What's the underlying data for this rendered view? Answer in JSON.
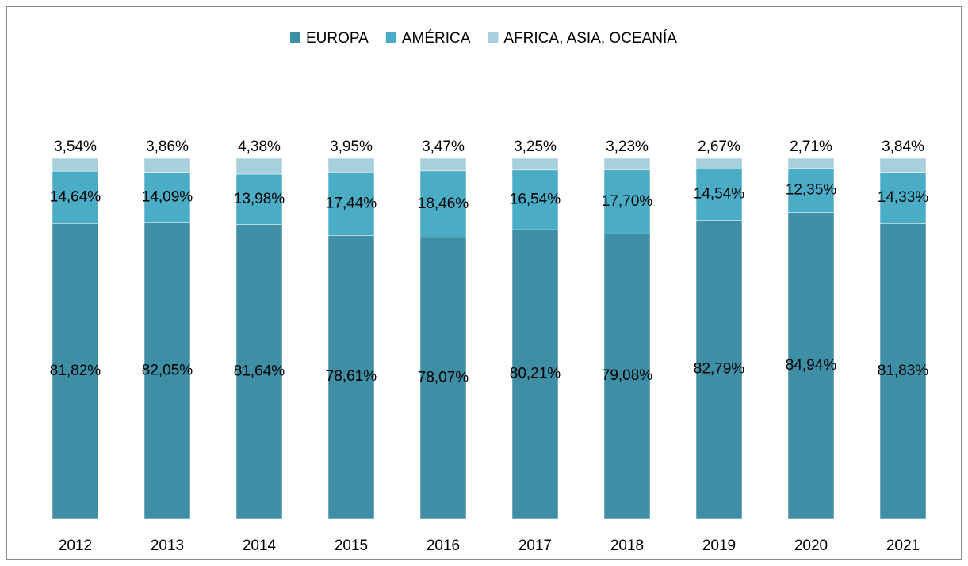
{
  "chart_data": {
    "type": "stacked-bar",
    "categories": [
      "2012",
      "2013",
      "2014",
      "2015",
      "2016",
      "2017",
      "2018",
      "2019",
      "2020",
      "2021"
    ],
    "series": [
      {
        "name": "EUROPA",
        "color": "#3e8ea6",
        "values": [
          81.82,
          82.05,
          81.64,
          78.61,
          78.07,
          80.21,
          79.08,
          82.79,
          84.94,
          81.83
        ],
        "value_labels": [
          "81,82%",
          "82,05%",
          "81,64%",
          "78,61%",
          "78,07%",
          "80,21%",
          "79,08%",
          "82,79%",
          "84,94%",
          "81,83%"
        ]
      },
      {
        "name": "AMÉRICA",
        "color": "#4bacc6",
        "values": [
          14.64,
          14.09,
          13.98,
          17.44,
          18.46,
          16.54,
          17.7,
          14.54,
          12.35,
          14.33
        ],
        "value_labels": [
          "14,64%",
          "14,09%",
          "13,98%",
          "17,44%",
          "18,46%",
          "16,54%",
          "17,70%",
          "14,54%",
          "12,35%",
          "14,33%"
        ]
      },
      {
        "name": "AFRICA, ASIA, OCEANÍA",
        "color": "#a8cfdc",
        "values": [
          3.54,
          3.86,
          4.38,
          3.95,
          3.47,
          3.25,
          3.23,
          2.67,
          2.71,
          3.84
        ],
        "value_labels": [
          "3,54%",
          "3,86%",
          "4,38%",
          "3,95%",
          "3,47%",
          "3,25%",
          "3,23%",
          "2,67%",
          "2,71%",
          "3,84%"
        ]
      }
    ],
    "legend": "top"
  }
}
